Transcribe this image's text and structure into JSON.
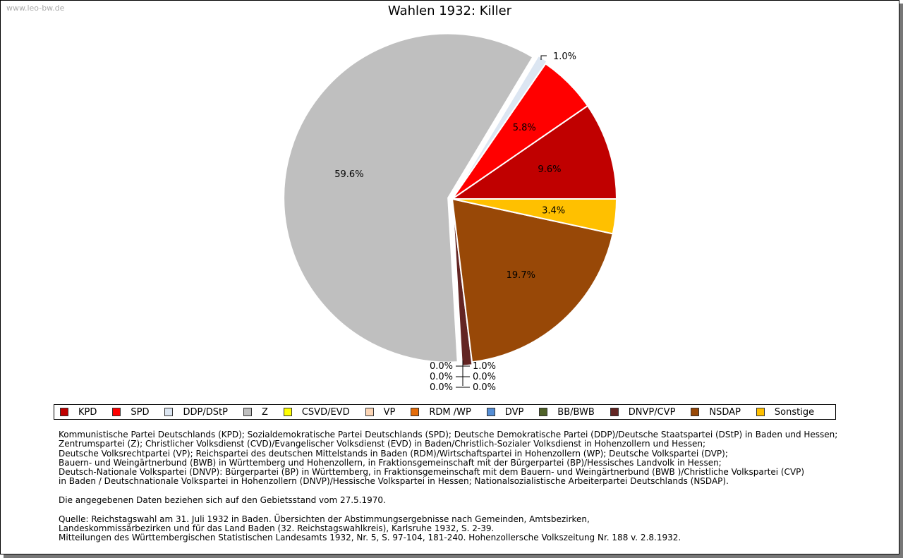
{
  "watermark": "www.leo-bw.de",
  "chart_data": {
    "type": "pie",
    "title": "Wahlen 1932: Killer",
    "slices": [
      {
        "label": "KPD",
        "value": 9.6,
        "color": "#c00000",
        "text": "9.6%"
      },
      {
        "label": "SPD",
        "value": 5.8,
        "color": "#ff0000",
        "text": "5.8%"
      },
      {
        "label": "DDP/DStP",
        "value": 1.0,
        "color": "#dce6f2",
        "text": "1.0%"
      },
      {
        "label": "Z",
        "value": 59.6,
        "color": "#bfbfbf",
        "text": "59.6%"
      },
      {
        "label": "CSVD/EVD",
        "value": 0.0,
        "color": "#ffff00",
        "text": "0.0%"
      },
      {
        "label": "VP",
        "value": 0.0,
        "color": "#fcd5b5",
        "text": "0.0%"
      },
      {
        "label": "RDM /WP",
        "value": 0.0,
        "color": "#e46c0a",
        "text": "0.0%"
      },
      {
        "label": "DVP",
        "value": 0.0,
        "color": "#558ed5",
        "text": "0.0%"
      },
      {
        "label": "BB/BWB",
        "value": 0.0,
        "color": "#4f6228",
        "text": "0.0%"
      },
      {
        "label": "DNVP/CVP",
        "value": 1.0,
        "color": "#632523",
        "text": "1.0%"
      },
      {
        "label": "NSDAP",
        "value": 19.7,
        "color": "#984807",
        "text": "19.7%"
      },
      {
        "label": "Sonstige",
        "value": 3.4,
        "color": "#ffc000",
        "text": "3.4%"
      }
    ],
    "legend_position": "bottom"
  },
  "notes": [
    "Kommunistische Partei Deutschlands (KPD); Sozialdemokratische Partei Deutschlands (SPD); Deutsche Demokratische Partei (DDP)/Deutsche Staatspartei (DStP) in Baden und Hessen;",
    "Zentrumspartei (Z); Christlicher Volksdienst (CVD)/Evangelischer Volksdienst (EVD) in Baden/Christlich-Sozialer Volksdienst in Hohenzollern und Hessen;",
    "Deutsche Volksrechtpartei (VP); Reichspartei des deutschen Mittelstands in Baden (RDM)/Wirtschaftspartei in Hohenzollern (WP); Deutsche Volkspartei (DVP);",
    "Bauern- und Weingärtnerbund (BWB) in Württemberg und Hohenzollern, in Fraktionsgemeinschaft mit der Bürgerpartei (BP)/Hessisches Landvolk in Hessen;",
    "Deutsch-Nationale Volkspartei (DNVP): Bürgerpartei (BP) in Württemberg, in Fraktionsgemeinschaft mit dem Bauern- und Weingärtnerbund (BWB )/Christliche Volkspartei (CVP)",
    "in Baden / Deutschnationale Volkspartei in Hohenzollern (DNVP)/Hessische Volkspartei in Hessen; Nationalsozialistische Arbeiterpartei Deutschlands (NSDAP).",
    "",
    "Die angegebenen Daten beziehen sich auf den Gebietsstand vom 27.5.1970.",
    "",
    "Quelle: Reichstagswahl am 31. Juli 1932 in Baden. Übersichten der Abstimmungsergebnisse nach Gemeinden, Amtsbezirken,",
    "Landeskommissärbezirken und für das Land Baden (32. Reichstagswahlkreis), Karlsruhe 1932, S. 2-39.",
    "Mitteilungen des Württembergischen Statistischen Landesamts 1932, Nr. 5, S. 97-104, 181-240. Hohenzollersche Volkszeitung Nr. 188 v. 2.8.1932."
  ]
}
